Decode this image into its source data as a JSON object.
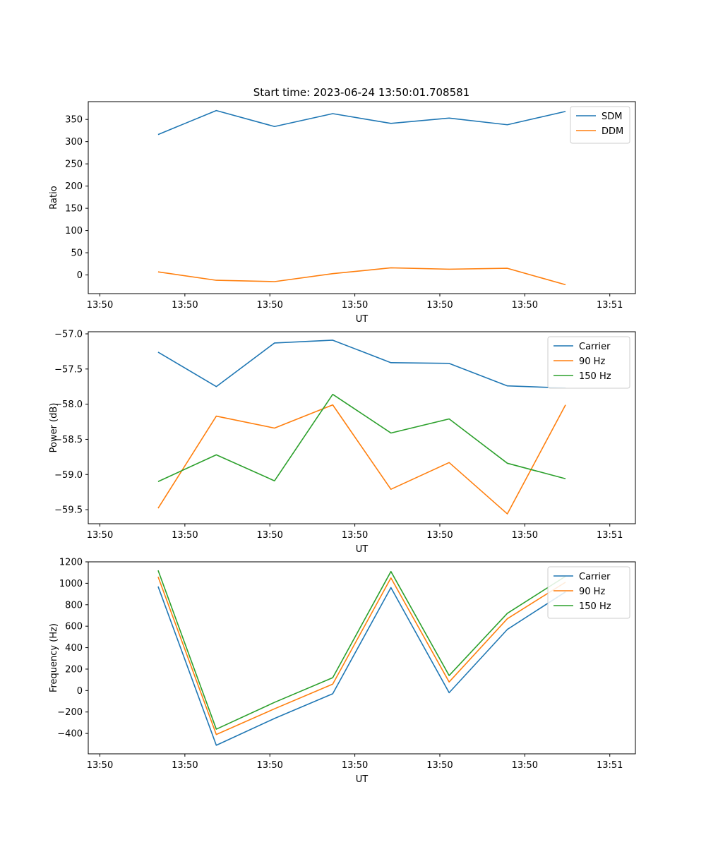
{
  "figure_title": "Start time: 2023-06-24 13:50:01.708581",
  "chart_data": [
    {
      "type": "line",
      "title": "Start time: 2023-06-24 13:50:01.708581",
      "xlabel": "UT",
      "ylabel": "Ratio",
      "x_tick_labels": [
        "13:50",
        "13:50",
        "13:50",
        "13:50",
        "13:50",
        "13:50",
        "13:51"
      ],
      "x": [
        0.5,
        1,
        1.5,
        2,
        2.5,
        3,
        3.5,
        4
      ],
      "xlim": [
        -0.1,
        4.6
      ],
      "yticks": [
        0,
        50,
        100,
        150,
        200,
        250,
        300,
        350
      ],
      "ylim": [
        -42,
        390
      ],
      "legend_position": "top-right",
      "series": [
        {
          "name": "SDM",
          "color": "#1f77b4",
          "values": [
            316,
            370,
            334,
            363,
            341,
            353,
            338,
            368
          ]
        },
        {
          "name": "DDM",
          "color": "#ff7f0e",
          "values": [
            7,
            -12,
            -15,
            3,
            16,
            13,
            15,
            -22
          ]
        }
      ]
    },
    {
      "type": "line",
      "title": "",
      "xlabel": "UT",
      "ylabel": "Power (dB)",
      "x_tick_labels": [
        "13:50",
        "13:50",
        "13:50",
        "13:50",
        "13:50",
        "13:50",
        "13:51"
      ],
      "x": [
        0.5,
        1,
        1.5,
        2,
        2.5,
        3,
        3.5,
        4
      ],
      "xlim": [
        -0.1,
        4.6
      ],
      "yticks": [
        -57.0,
        -57.5,
        -58.0,
        -58.5,
        -59.0,
        -59.5
      ],
      "ytick_labels": [
        "−57.0",
        "−57.5",
        "−58.0",
        "−58.5",
        "−59.0",
        "−59.5"
      ],
      "ylim": [
        -59.7,
        -56.97
      ],
      "legend_position": "top-right",
      "series": [
        {
          "name": "Carrier",
          "color": "#1f77b4",
          "values": [
            -57.26,
            -57.75,
            -57.13,
            -57.09,
            -57.41,
            -57.42,
            -57.74,
            -57.77
          ]
        },
        {
          "name": "90 Hz",
          "color": "#ff7f0e",
          "values": [
            -59.48,
            -58.17,
            -58.34,
            -58.01,
            -59.21,
            -58.83,
            -59.56,
            -58.01
          ]
        },
        {
          "name": "150 Hz",
          "color": "#2ca02c",
          "values": [
            -59.1,
            -58.72,
            -59.09,
            -57.86,
            -58.41,
            -58.21,
            -58.84,
            -59.06
          ]
        }
      ]
    },
    {
      "type": "line",
      "title": "",
      "xlabel": "UT",
      "ylabel": "Frequency (Hz)",
      "x_tick_labels": [
        "13:50",
        "13:50",
        "13:50",
        "13:50",
        "13:50",
        "13:50",
        "13:51"
      ],
      "x": [
        0.5,
        1,
        1.5,
        2,
        2.5,
        3,
        3.5,
        4
      ],
      "xlim": [
        -0.1,
        4.6
      ],
      "yticks": [
        -400,
        -200,
        0,
        200,
        400,
        600,
        800,
        1000,
        1200
      ],
      "ytick_labels": [
        "−400",
        "−200",
        "0",
        "200",
        "400",
        "600",
        "800",
        "1000",
        "1200"
      ],
      "ylim": [
        -590,
        1200
      ],
      "legend_position": "top-right",
      "series": [
        {
          "name": "Carrier",
          "color": "#1f77b4",
          "values": [
            970,
            -510,
            -260,
            -30,
            960,
            -20,
            570,
            920
          ]
        },
        {
          "name": "90 Hz",
          "color": "#ff7f0e",
          "values": [
            1060,
            -410,
            -170,
            60,
            1050,
            80,
            670,
            1010
          ]
        },
        {
          "name": "150 Hz",
          "color": "#2ca02c",
          "values": [
            1120,
            -360,
            -110,
            120,
            1110,
            140,
            720,
            1065
          ]
        }
      ]
    }
  ]
}
